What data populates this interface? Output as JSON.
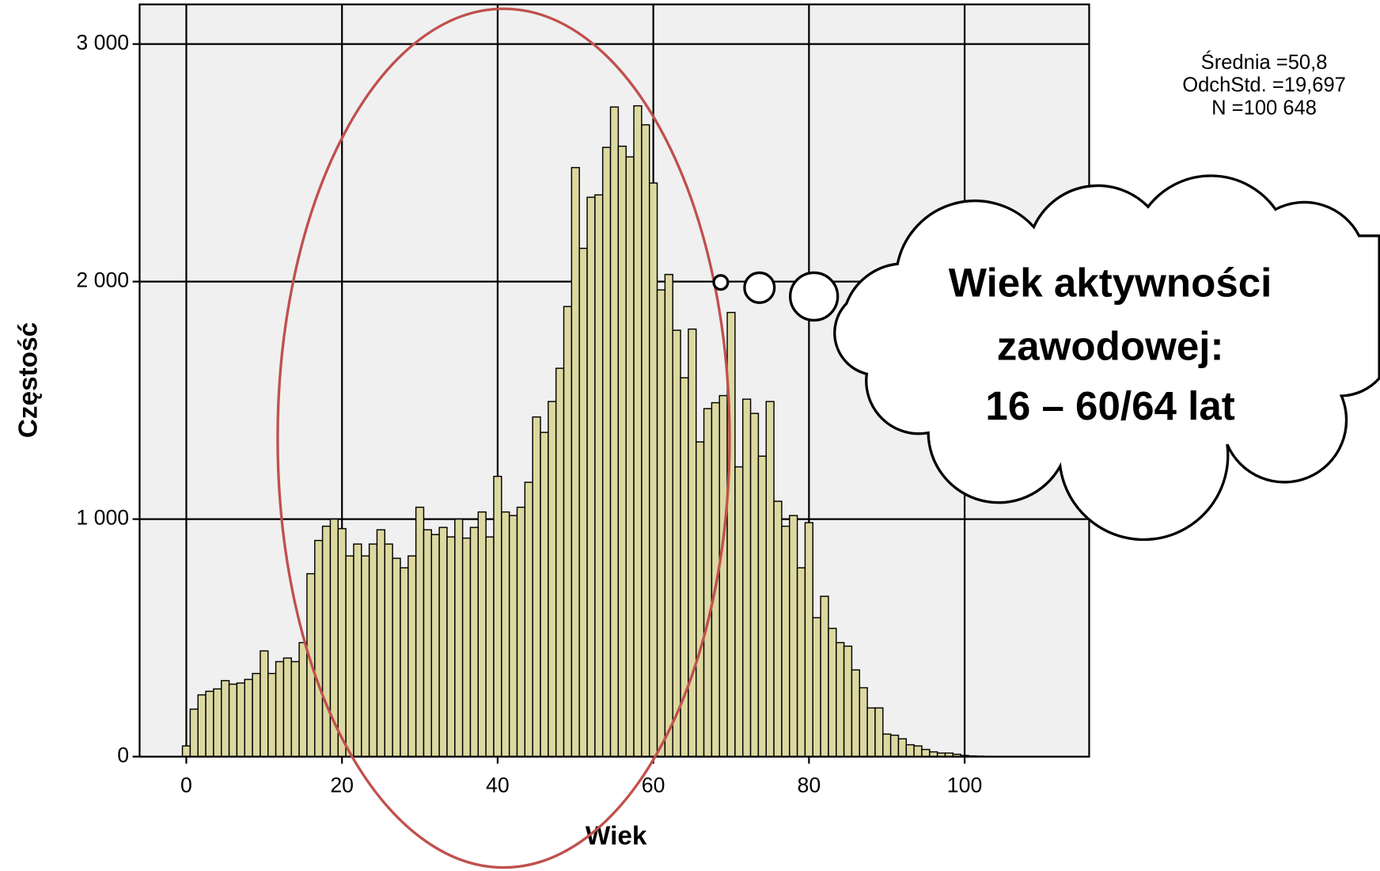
{
  "chart_data": {
    "type": "histogram",
    "x_label": "Wiek",
    "y_label": "Częstość",
    "annotations": [
      "Średnia =50,8",
      "OdchStd. =19,697",
      "N =100 648"
    ],
    "callout": [
      "Wiek aktywności",
      "zawodowej:",
      "16 – 60/64 lat"
    ],
    "bins": [
      -0.5,
      0.5,
      1.5,
      2.5,
      3.5,
      4.5,
      5.5,
      6.5,
      7.5,
      8.5,
      9.5,
      10.5,
      11.5,
      12.5,
      13.5,
      14.5,
      15.5,
      16.5,
      17.5,
      18.5,
      19.5,
      20.5,
      21.5,
      22.5,
      23.5,
      24.5,
      25.5,
      26.5,
      27.5,
      28.5,
      29.5,
      30.5,
      31.5,
      32.5,
      33.5,
      34.5,
      35.5,
      36.5,
      37.5,
      38.5,
      39.5,
      40.5,
      41.5,
      42.5,
      43.5,
      44.5,
      45.5,
      46.5,
      47.5,
      48.5,
      49.5,
      50.5,
      51.5,
      52.5,
      53.5,
      54.5,
      55.5,
      56.5,
      57.5,
      58.5,
      59.5,
      60.5,
      61.5,
      62.5,
      63.5,
      64.5,
      65.5,
      66.5,
      67.5,
      68.5,
      69.5,
      70.5,
      71.5,
      72.5,
      73.5,
      74.5,
      75.5,
      76.5,
      77.5,
      78.5,
      79.5,
      80.5,
      81.5,
      82.5,
      83.5,
      84.5,
      85.5,
      86.5,
      87.5,
      88.5,
      89.5,
      90.5,
      91.5,
      92.5,
      93.5,
      94.5,
      95.5,
      96.5,
      97.5,
      98.5,
      99.5,
      100.5,
      101.5,
      102.5,
      103.5,
      104.5
    ],
    "values": [
      45,
      200,
      260,
      275,
      285,
      320,
      305,
      310,
      325,
      350,
      445,
      350,
      400,
      415,
      400,
      480,
      770,
      910,
      970,
      1000,
      960,
      845,
      895,
      845,
      895,
      955,
      895,
      835,
      795,
      845,
      1050,
      955,
      935,
      965,
      925,
      1000,
      920,
      965,
      1030,
      925,
      1180,
      1030,
      1015,
      1050,
      1155,
      1430,
      1365,
      1495,
      1635,
      1895,
      2480,
      2140,
      2355,
      2365,
      2565,
      2735,
      2570,
      2525,
      2740,
      2660,
      2415,
      1965,
      2030,
      1795,
      1595,
      1800,
      1325,
      1465,
      1490,
      1520,
      1870,
      1220,
      1505,
      1445,
      1265,
      1495,
      1075,
      970,
      1015,
      795,
      985,
      585,
      675,
      540,
      480,
      465,
      365,
      290,
      205,
      205,
      95,
      90,
      75,
      50,
      45,
      30,
      20,
      15,
      15,
      10,
      5,
      3,
      2,
      1,
      1
    ],
    "color": "#dcd8a0",
    "xlim": [
      -6,
      116
    ],
    "ylim": [
      0,
      3167
    ],
    "xticks": [
      0,
      20,
      40,
      60,
      80,
      100
    ],
    "yticks": [
      0,
      {
        "value": 1000,
        "label": "1 000"
      },
      {
        "value": 2000,
        "label": "2 000"
      },
      {
        "value": 3000,
        "label": "3 000"
      }
    ],
    "grid": true
  }
}
